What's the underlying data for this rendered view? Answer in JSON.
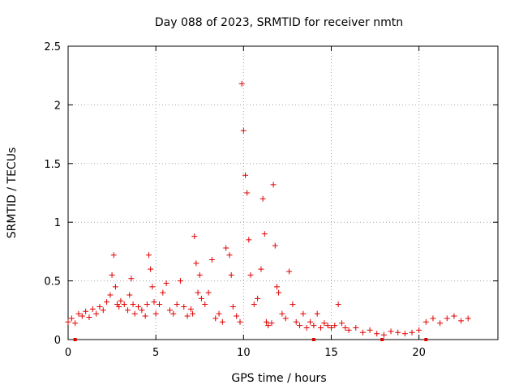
{
  "chart_data": {
    "type": "scatter",
    "title": "Day 088 of 2023, SRMTID for receiver nmtn",
    "xlabel": "GPS time / hours",
    "ylabel": "SRMTID / TECUs",
    "xlim": [
      0,
      24.5
    ],
    "ylim": [
      0,
      2.5
    ],
    "xticks": [
      0,
      5,
      10,
      15,
      20
    ],
    "xtick_labels": [
      "0",
      "5",
      "10",
      "15",
      "20"
    ],
    "yticks": [
      0,
      0.5,
      1,
      1.5,
      2,
      2.5
    ],
    "ytick_labels": [
      "0",
      "0.5",
      "1",
      "1.5",
      "2",
      "2.5"
    ],
    "grid": true,
    "marker": "plus",
    "color": "#e00000",
    "series": [
      {
        "name": "SRMTID",
        "x": [
          0.0,
          0.2,
          0.4,
          0.6,
          0.8,
          1.0,
          1.2,
          1.4,
          1.6,
          1.8,
          2.0,
          2.2,
          2.4,
          2.5,
          2.6,
          2.7,
          2.8,
          2.9,
          3.0,
          3.2,
          3.4,
          3.5,
          3.6,
          3.7,
          3.8,
          4.0,
          4.2,
          4.4,
          4.5,
          4.6,
          4.7,
          4.8,
          4.9,
          5.0,
          5.2,
          5.4,
          5.6,
          5.8,
          6.0,
          6.2,
          6.4,
          6.6,
          6.8,
          7.0,
          7.1,
          7.2,
          7.3,
          7.4,
          7.5,
          7.6,
          7.8,
          8.0,
          8.2,
          8.4,
          8.6,
          8.8,
          9.0,
          9.2,
          9.3,
          9.4,
          9.6,
          9.8,
          9.9,
          10.0,
          10.1,
          10.2,
          10.3,
          10.4,
          10.6,
          10.8,
          11.0,
          11.1,
          11.2,
          11.3,
          11.4,
          11.6,
          11.7,
          11.8,
          11.9,
          12.0,
          12.2,
          12.4,
          12.6,
          12.8,
          13.0,
          13.2,
          13.4,
          13.6,
          13.8,
          14.0,
          14.2,
          14.4,
          14.6,
          14.8,
          15.0,
          15.2,
          15.4,
          15.6,
          15.8,
          16.0,
          16.4,
          16.8,
          17.2,
          17.6,
          18.0,
          18.4,
          18.8,
          19.2,
          19.6,
          20.0,
          20.4,
          20.8,
          21.2,
          21.6,
          22.0,
          22.4,
          22.8
        ],
        "y": [
          0.15,
          0.18,
          0.14,
          0.22,
          0.2,
          0.24,
          0.19,
          0.26,
          0.22,
          0.28,
          0.25,
          0.32,
          0.38,
          0.55,
          0.72,
          0.45,
          0.3,
          0.28,
          0.33,
          0.3,
          0.25,
          0.38,
          0.52,
          0.3,
          0.22,
          0.28,
          0.25,
          0.2,
          0.3,
          0.72,
          0.6,
          0.45,
          0.32,
          0.22,
          0.3,
          0.4,
          0.48,
          0.25,
          0.22,
          0.3,
          0.5,
          0.28,
          0.2,
          0.26,
          0.22,
          0.88,
          0.65,
          0.4,
          0.55,
          0.35,
          0.3,
          0.4,
          0.68,
          0.18,
          0.22,
          0.15,
          0.78,
          0.72,
          0.55,
          0.28,
          0.2,
          0.15,
          2.18,
          1.78,
          1.4,
          1.25,
          0.85,
          0.55,
          0.3,
          0.35,
          0.6,
          1.2,
          0.9,
          0.15,
          0.12,
          0.14,
          1.32,
          0.8,
          0.45,
          0.4,
          0.22,
          0.18,
          0.58,
          0.3,
          0.15,
          0.12,
          0.22,
          0.1,
          0.15,
          0.12,
          0.22,
          0.1,
          0.14,
          0.12,
          0.1,
          0.12,
          0.3,
          0.14,
          0.1,
          0.08,
          0.1,
          0.06,
          0.08,
          0.05,
          0.04,
          0.07,
          0.06,
          0.05,
          0.06,
          0.08,
          0.15,
          0.18,
          0.14,
          0.18,
          0.2,
          0.16,
          0.18
        ]
      }
    ],
    "gap_markers_x": [
      0.4,
      14.0,
      17.9,
      20.4
    ]
  }
}
